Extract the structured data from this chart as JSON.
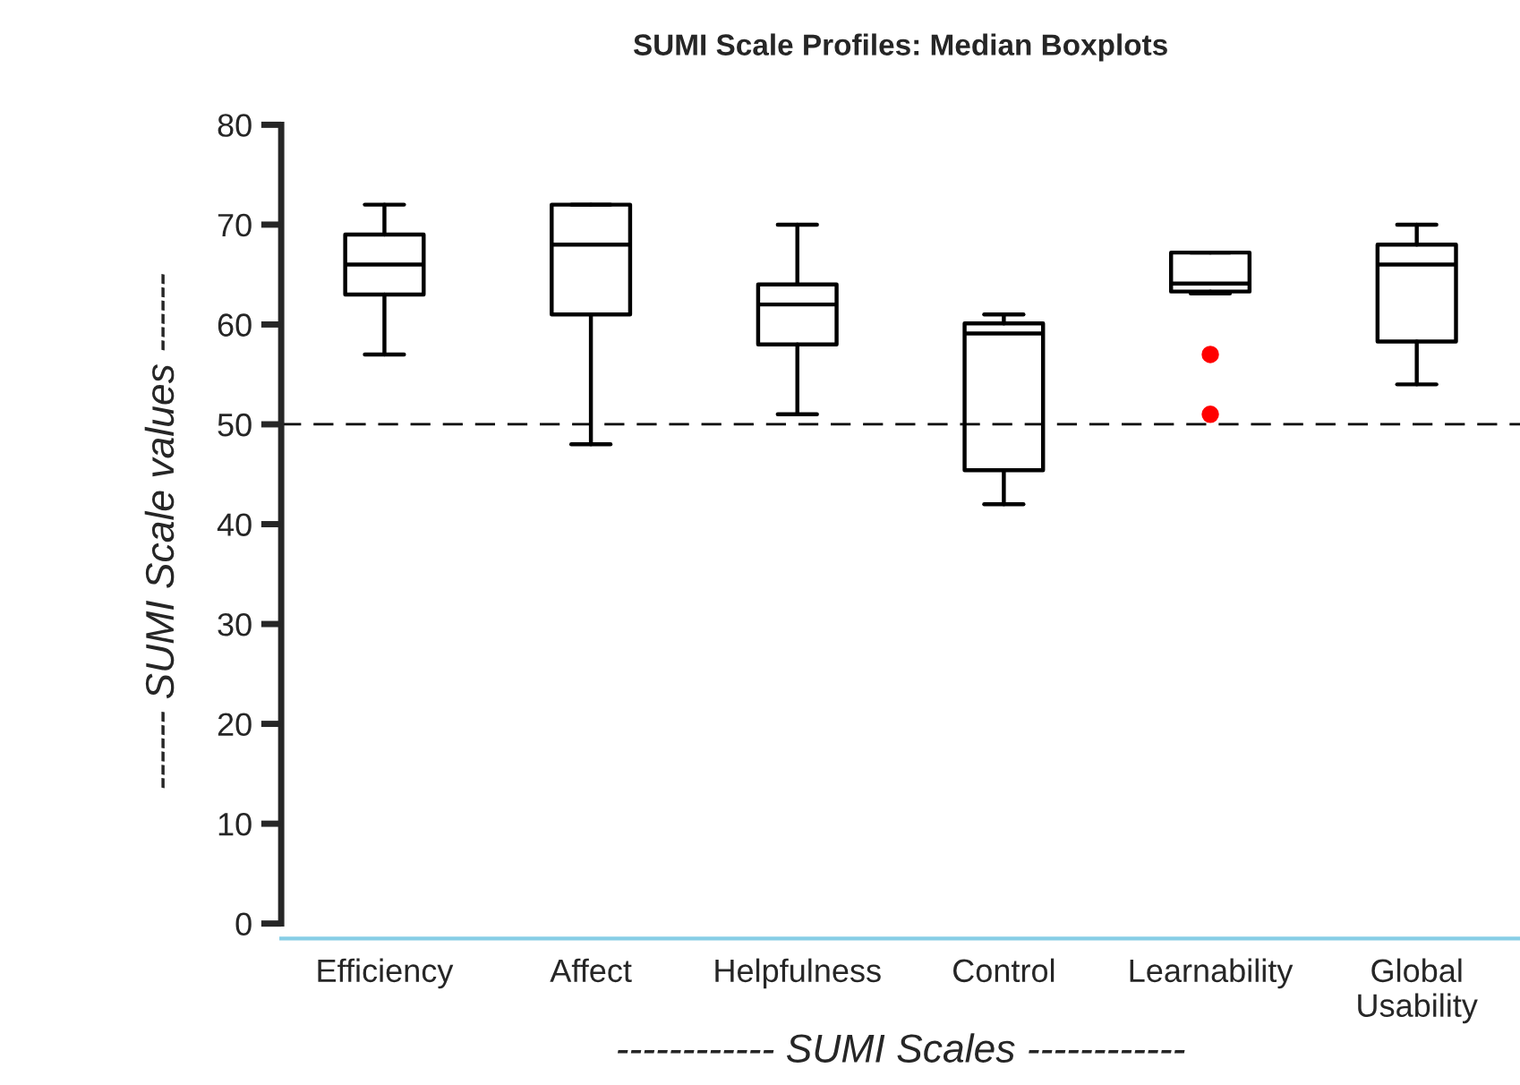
{
  "chart_data": {
    "type": "box",
    "title": "SUMI Scale Profiles: Median Boxplots",
    "xlabel": "------------ SUMI Scales ------------",
    "ylabel": "------ SUMI Scale values ------",
    "categories": [
      "Efficiency",
      "Affect",
      "Helpfulness",
      "Control",
      "Learnability",
      "Global\nUsability"
    ],
    "boxes": [
      {
        "low": 57,
        "q1": 63,
        "median": 66,
        "q3": 69,
        "high": 72
      },
      {
        "low": 48,
        "q1": 61,
        "median": 68,
        "q3": 72,
        "high": 72
      },
      {
        "low": 51,
        "q1": 58,
        "median": 62,
        "q3": 64,
        "high": 70
      },
      {
        "low": 42,
        "q1": 45.4,
        "median": 59.1,
        "q3": 60.1,
        "high": 61
      },
      {
        "low": 63.1,
        "q1": 63.3,
        "median": 64.1,
        "q3": 67.2,
        "high": 67.2,
        "outliers": [
          57,
          51
        ]
      },
      {
        "low": 54,
        "q1": 58.3,
        "median": 66,
        "q3": 68,
        "high": 70
      }
    ],
    "ylim": [
      -1.5,
      80
    ],
    "yticks": [
      0,
      10,
      20,
      30,
      40,
      50,
      60,
      70,
      80
    ],
    "ref_lines": [
      {
        "axis": "y",
        "value": 50,
        "color": "#000000",
        "line_style": "dashed"
      }
    ],
    "grid": false,
    "legend": false
  }
}
